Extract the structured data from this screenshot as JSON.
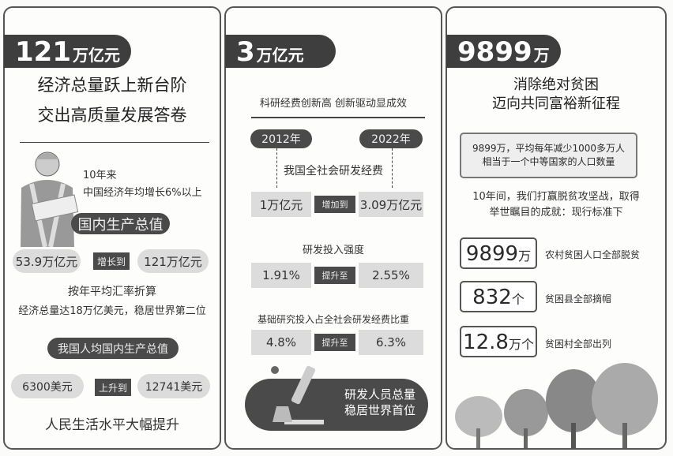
{
  "left": {
    "badge_value": "121",
    "badge_unit": "万亿元",
    "title_lines": [
      "经济总量跃上新台阶",
      "交出高质量发展答卷"
    ],
    "growth_lines": [
      "10年来",
      "中国经济年均增长6%以上"
    ],
    "gdp_label": "国内生产总值",
    "gdp_from": "53.9万亿元",
    "gdp_verb": "增长到",
    "gdp_to": "121万亿元",
    "exchange_lines": [
      "按年平均汇率折算",
      "经济总量达18万亿美元，稳居世界第二位"
    ],
    "per_capita_label": "我国人均国内生产总值",
    "pc_from": "6300美元",
    "pc_verb": "上升到",
    "pc_to": "12741美元",
    "footer": "人民生活水平大幅提升"
  },
  "middle": {
    "badge_value": "3",
    "badge_unit": "万亿元",
    "heading": "科研经费创新高 创新驱动显成效",
    "year_start": "2012年",
    "year_end": "2022年",
    "rd_label": "我国全社会研发经费",
    "rd_from": "1万亿元",
    "rd_verb": "增加到",
    "rd_to": "3.09万亿元",
    "intensity_label": "研发投入强度",
    "int_from": "1.91%",
    "int_verb": "提升至",
    "int_to": "2.55%",
    "basic_label": "基础研究投入占全社会研发经费比重",
    "basic_from": "4.8%",
    "basic_verb": "提升至",
    "basic_to": "6.3%",
    "banner_lines": [
      "研发人员总量",
      "稳居世界首位"
    ]
  },
  "right": {
    "badge_value": "9899",
    "badge_unit": "万",
    "title_lines": [
      "消除绝对贫困",
      "迈向共同富裕新征程"
    ],
    "box_lines": [
      "9899万，平均每年减少1000多万人",
      "相当于一个中等国家的人口数量"
    ],
    "intro_lines": [
      "10年间，我们打赢脱贫攻坚战，取得",
      "举世瞩目的成就：现行标准下"
    ],
    "stats": [
      {
        "num": "9899",
        "unit": "万",
        "desc": "农村贫困人口全部脱贫"
      },
      {
        "num": "832",
        "unit": "个",
        "desc": "贫困县全部摘帽"
      },
      {
        "num": "12.8",
        "unit": "万个",
        "desc": "贫困村全部出列"
      }
    ]
  }
}
